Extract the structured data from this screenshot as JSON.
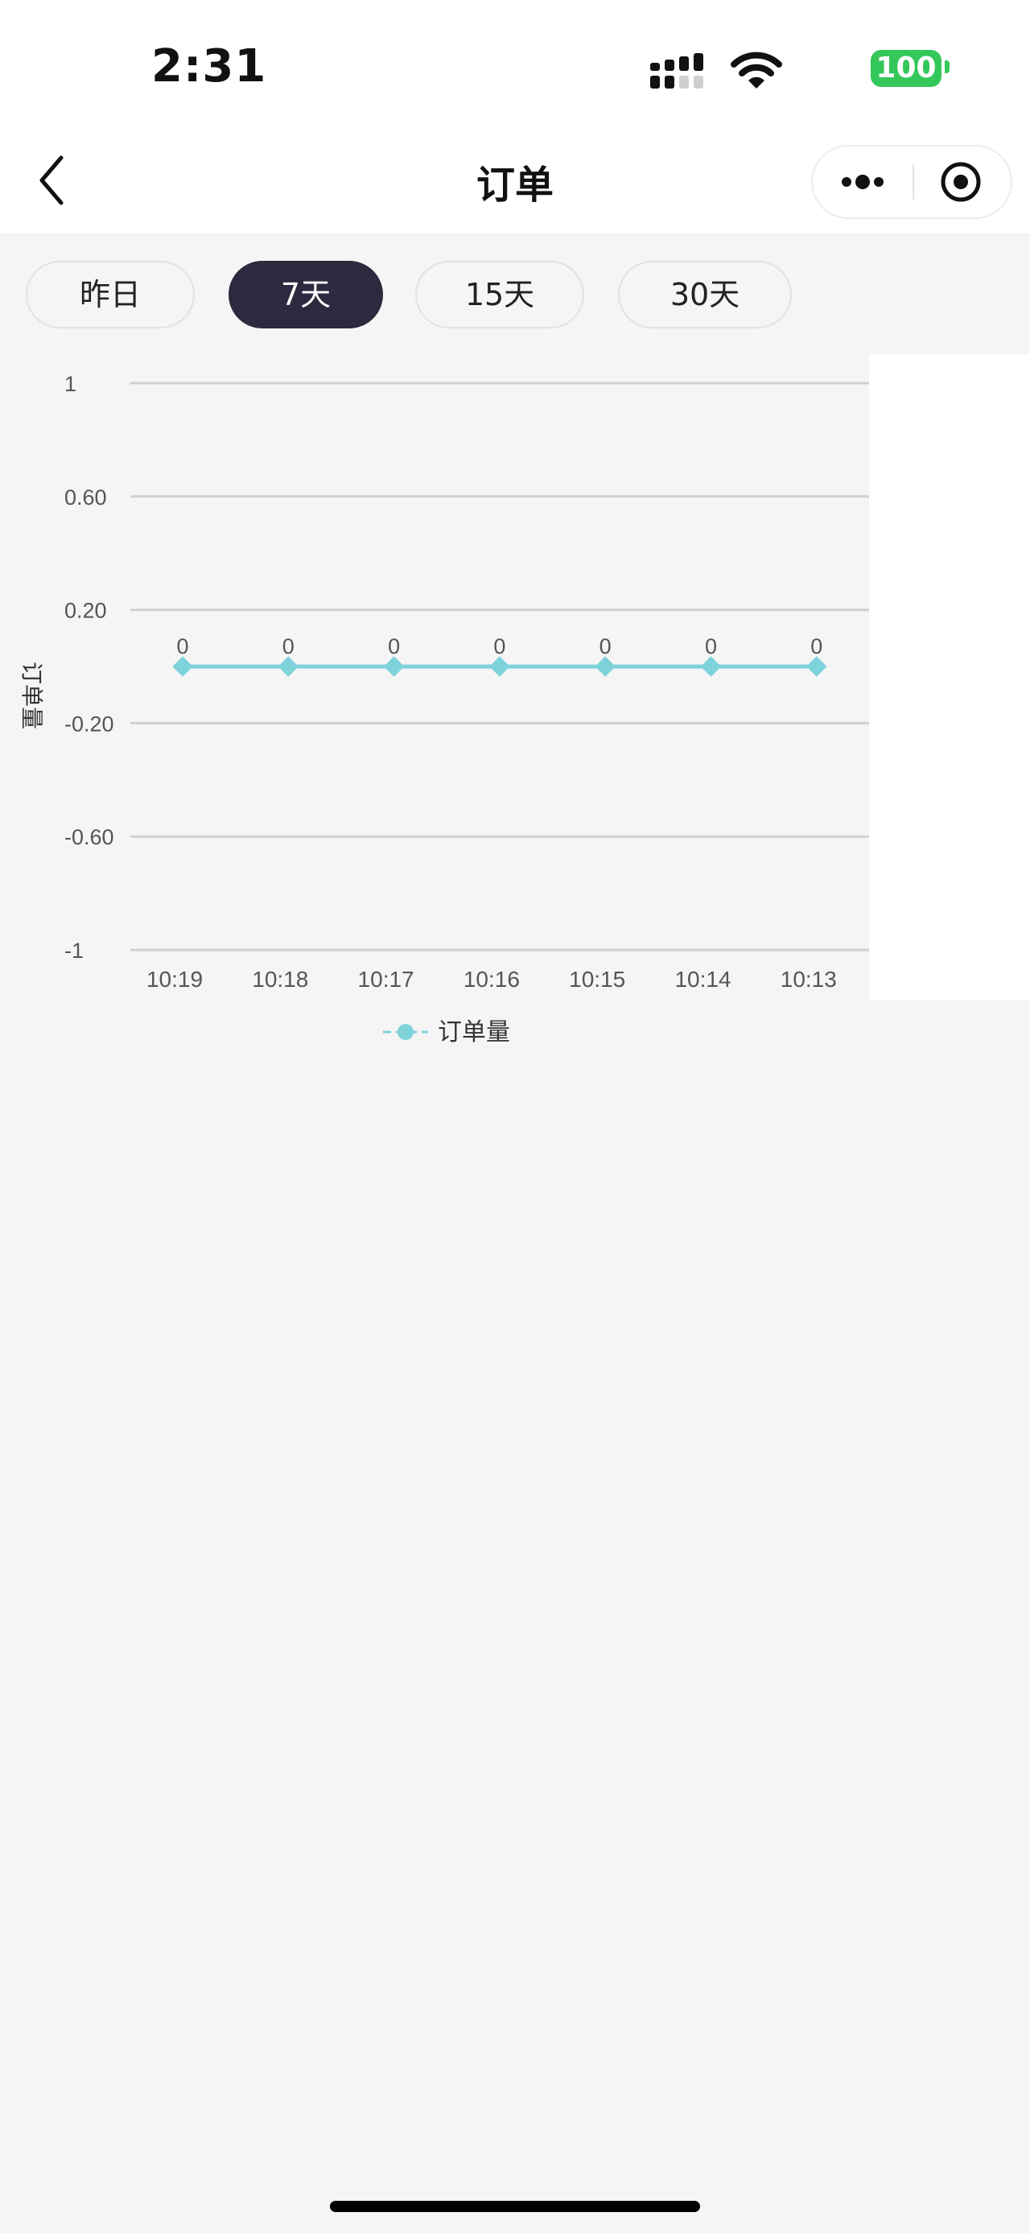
{
  "status_bar": {
    "time": "2:31",
    "battery": "100"
  },
  "nav": {
    "title": "订单"
  },
  "tabs": [
    {
      "label": "昨日",
      "active": false
    },
    {
      "label": "7天",
      "active": true
    },
    {
      "label": "15天",
      "active": false
    },
    {
      "label": "30天",
      "active": false
    }
  ],
  "colors": {
    "series": "#7ed3db",
    "active_tab": "#2b2a3e",
    "battery": "#34c759"
  },
  "chart_data": {
    "type": "line",
    "categories": [
      "10:19",
      "10:18",
      "10:17",
      "10:16",
      "10:15",
      "10:14",
      "10:13"
    ],
    "series": [
      {
        "name": "订单量",
        "values": [
          0,
          0,
          0,
          0,
          0,
          0,
          0
        ]
      }
    ],
    "y_ticks": [
      "1",
      "0.60",
      "0.20",
      "-0.20",
      "-0.60",
      "-1"
    ],
    "ylabel": "订单量",
    "ylim": [
      -1,
      1
    ],
    "data_labels": true,
    "grid": true,
    "legend": "bottom-center"
  }
}
